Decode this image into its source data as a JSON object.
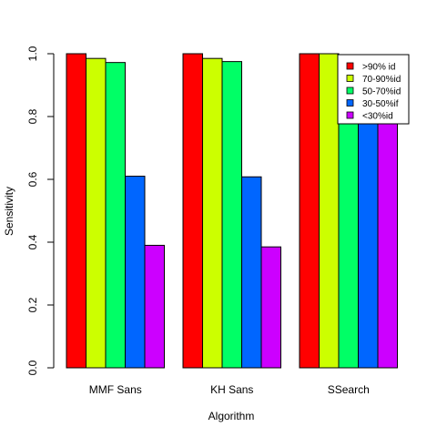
{
  "chart_data": {
    "type": "bar",
    "title": "",
    "xlabel": "Algorithm",
    "ylabel": "Sensitivity",
    "ylim": [
      0,
      1
    ],
    "yticks": [
      "0.0",
      "0.2",
      "0.4",
      "0.6",
      "0.8",
      "1.0"
    ],
    "ytick_values": [
      0,
      0.2,
      0.4,
      0.6,
      0.8,
      1.0
    ],
    "categories": [
      "MMF Sans",
      "KH Sans",
      "SSearch"
    ],
    "series": [
      {
        "name": ">90% id",
        "color": "#ff0000",
        "values": [
          1.0,
          1.0,
          1.0
        ]
      },
      {
        "name": "70-90%id",
        "color": "#ccff00",
        "values": [
          0.985,
          0.985,
          1.0
        ]
      },
      {
        "name": "50-70%id",
        "color": "#00ff66",
        "values": [
          0.972,
          0.975,
          0.78
        ]
      },
      {
        "name": "30-50%if",
        "color": "#0066ff",
        "values": [
          0.61,
          0.608,
          0.78
        ]
      },
      {
        "name": "<30%id",
        "color": "#cc00ff",
        "values": [
          0.39,
          0.385,
          0.78
        ]
      }
    ],
    "legend_position": "top-right",
    "grid": false
  }
}
